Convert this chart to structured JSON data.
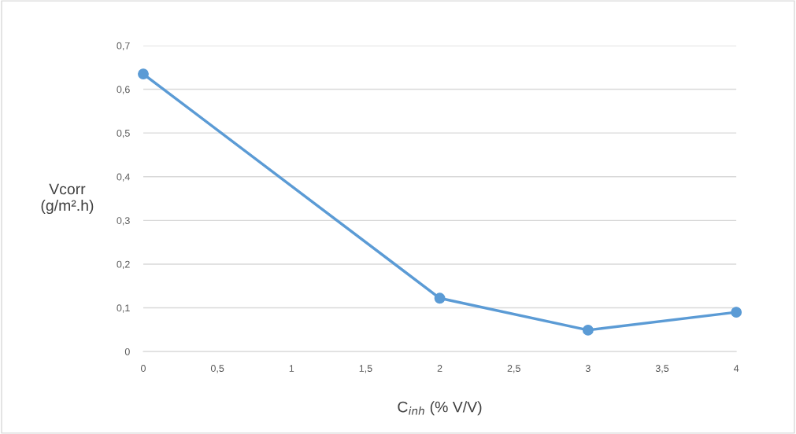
{
  "chart_data": {
    "type": "line",
    "xlabel": "C$_{inh}$ (% V/V)",
    "ylabel": "Vcorr\n(g/m².h)",
    "x": [
      0,
      2,
      3,
      4
    ],
    "series": [
      {
        "color": "#5b9bd5",
        "values": [
          0.635,
          0.122,
          0.049,
          0.09
        ]
      }
    ],
    "xlim": [
      0,
      4
    ],
    "xticks": [
      0,
      {
        "value": 0.5,
        "label": "0,5"
      },
      1,
      {
        "value": 1.5,
        "label": "1,5"
      },
      2,
      {
        "value": 2.5,
        "label": "2,5"
      },
      3,
      {
        "value": 3.5,
        "label": "3,5"
      },
      4
    ],
    "ylim": [
      0,
      0.7
    ],
    "yticks": [
      0,
      {
        "value": 0.1,
        "label": "0,1"
      },
      {
        "value": 0.2,
        "label": "0,2"
      },
      {
        "value": 0.3,
        "label": "0,3"
      },
      {
        "value": 0.4,
        "label": "0,4"
      },
      {
        "value": 0.5,
        "label": "0,5"
      },
      {
        "value": 0.6,
        "label": "0,6"
      },
      {
        "value": 0.7,
        "label": "0,7"
      }
    ],
    "grid": "y",
    "marker": "circle",
    "line_style": "solid",
    "legend": false
  }
}
